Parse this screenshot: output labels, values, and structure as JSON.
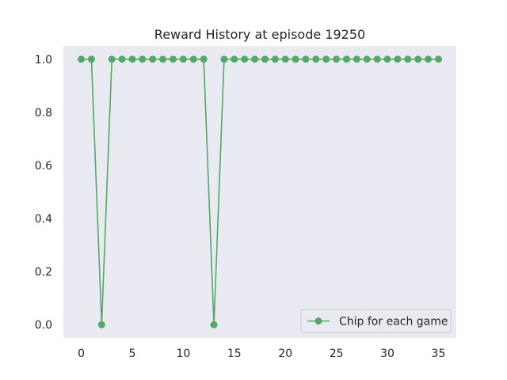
{
  "chart_data": {
    "type": "line",
    "title": "Reward History at episode 19250",
    "xlabel": "",
    "ylabel": "",
    "xlim": [
      -1.75,
      36.75
    ],
    "ylim": [
      -0.05,
      1.05
    ],
    "xticks": [
      0,
      5,
      10,
      15,
      20,
      25,
      30,
      35
    ],
    "yticks": [
      0.0,
      0.2,
      0.4,
      0.6,
      0.8,
      1.0
    ],
    "xtick_labels": [
      "0",
      "5",
      "10",
      "15",
      "20",
      "25",
      "30",
      "35"
    ],
    "ytick_labels": [
      "0.0",
      "0.2",
      "0.4",
      "0.6",
      "0.8",
      "1.0"
    ],
    "grid": false,
    "legend_position": "lower-right",
    "colors": {
      "line": "#55a868",
      "background": "#eaeaf2"
    },
    "series": [
      {
        "name": "Chip for each game",
        "marker": "circle",
        "x": [
          0,
          1,
          2,
          3,
          4,
          5,
          6,
          7,
          8,
          9,
          10,
          11,
          12,
          13,
          14,
          15,
          16,
          17,
          18,
          19,
          20,
          21,
          22,
          23,
          24,
          25,
          26,
          27,
          28,
          29,
          30,
          31,
          32,
          33,
          34,
          35
        ],
        "values": [
          1,
          1,
          0,
          1,
          1,
          1,
          1,
          1,
          1,
          1,
          1,
          1,
          1,
          0,
          1,
          1,
          1,
          1,
          1,
          1,
          1,
          1,
          1,
          1,
          1,
          1,
          1,
          1,
          1,
          1,
          1,
          1,
          1,
          1,
          1,
          1
        ]
      }
    ]
  }
}
